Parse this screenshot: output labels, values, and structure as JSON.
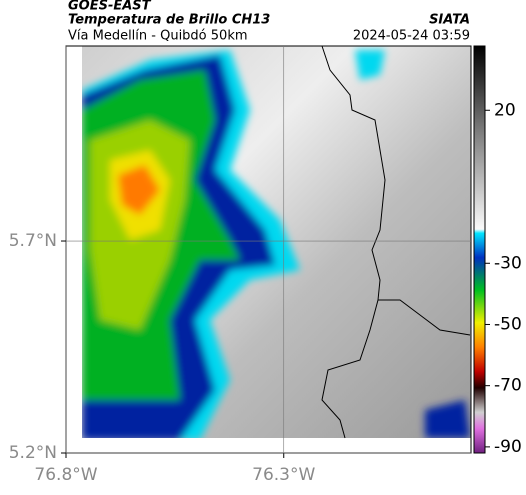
{
  "map": {
    "header": {
      "title": "GOES-EAST",
      "subtitle": "Temperatura de Brillo CH13",
      "source": "SIATA",
      "route": "Vía Medellín - Quibdó 50km",
      "timestamp": "2024-05-24 03:59"
    },
    "xlim": [
      -76.8,
      -75.87
    ],
    "ylim": [
      5.2,
      6.16
    ],
    "xticks": [
      {
        "value": -76.8,
        "label": "76.8°W"
      },
      {
        "value": -76.3,
        "label": "76.3°W"
      }
    ],
    "yticks": [
      {
        "value": 5.7,
        "label": "5.7°N"
      },
      {
        "value": 5.2,
        "label": "5.2°N"
      }
    ],
    "colorbar": {
      "lim": [
        -92,
        41
      ],
      "ticks": [
        20,
        -30,
        -50,
        -70,
        -90
      ]
    }
  }
}
